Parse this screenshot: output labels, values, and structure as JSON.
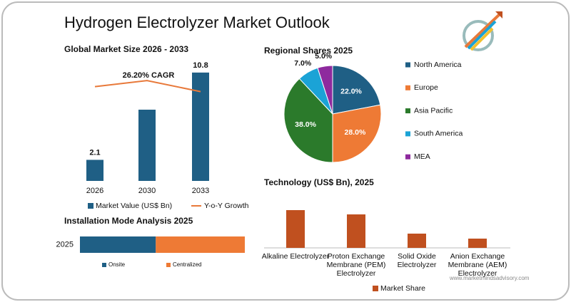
{
  "title": "Hydrogen Electrolyzer Market Outlook",
  "watermark": "www.marketmindsadvisory.com",
  "chart_data": [
    {
      "type": "bar",
      "title": "Global Market Size 2026 - 2033",
      "categories": [
        "2026",
        "2030",
        "2033"
      ],
      "ylim": [
        0,
        11.5
      ],
      "annotation": "26.20% CAGR",
      "series": [
        {
          "name": "Market Value (US$ Bn)",
          "color": "#1f5f85",
          "kind": "bar",
          "values": [
            2.1,
            7.1,
            10.8
          ],
          "value_labels": [
            "2.1",
            null,
            "10.8"
          ]
        },
        {
          "name": "Y-o-Y Growth",
          "color": "#e8793a",
          "kind": "line",
          "values": [
            9.4,
            10.0,
            8.9
          ]
        }
      ]
    },
    {
      "type": "pie",
      "title": "Regional Shares 2025",
      "categories": [
        "North America",
        "Europe",
        "Asia Pacific",
        "South America",
        "MEA"
      ],
      "values": [
        22,
        28,
        38,
        7,
        5
      ],
      "value_labels": [
        "22.0%",
        "28.0%",
        "38.0%",
        "7.0%",
        "5.0%"
      ],
      "colors": [
        "#1f5f85",
        "#ee7a35",
        "#2b7a2b",
        "#1ba3d6",
        "#8e2a9e"
      ]
    },
    {
      "type": "bar",
      "title": "Technology  (US$ Bn), 2025",
      "categories": [
        "Alkaline Electrolyzer",
        "Proton Exchange Membrane (PEM) Electrolyzer",
        "Solid Oxide Electrolyzer",
        "Anion Exchange Membrane (AEM) Electrolyzer"
      ],
      "ylim": [
        0,
        6
      ],
      "series": [
        {
          "name": "Market Share",
          "color": "#c0501f",
          "kind": "bar",
          "values": [
            5.3,
            4.7,
            2.0,
            1.3
          ]
        }
      ]
    },
    {
      "type": "hbar-stacked",
      "title": "Installation Mode Analysis 2025",
      "categories": [
        "2025"
      ],
      "xlim": [
        0,
        100
      ],
      "series": [
        {
          "name": "Onsite",
          "color": "#1f5f85",
          "values": [
            46
          ]
        },
        {
          "name": "Centralized",
          "color": "#ee7a35",
          "values": [
            54
          ]
        }
      ]
    }
  ]
}
